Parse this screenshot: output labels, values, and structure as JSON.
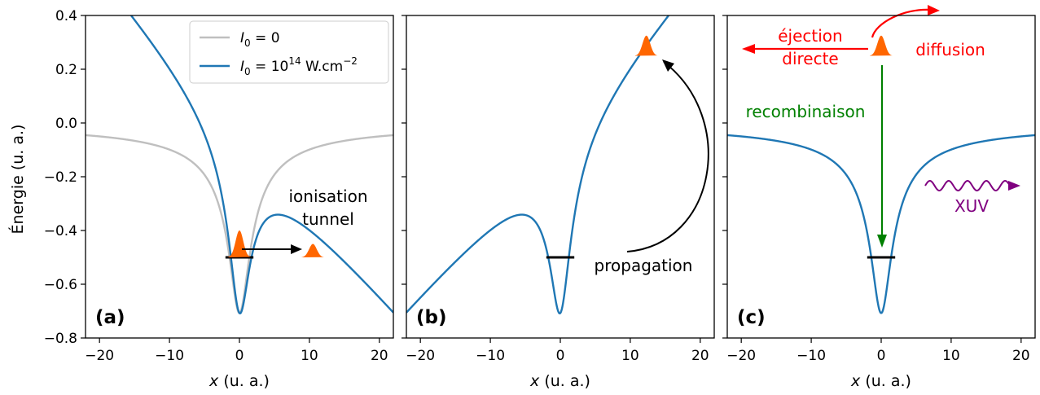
{
  "figure": {
    "ylabel": "Énergie (u. a.)",
    "xlabel_var": "x",
    "xlabel_unit": " (u. a.)"
  },
  "colors": {
    "field_off": "#bfbfbf",
    "field_on": "#1f77b4",
    "wavepacket": "#ff6600",
    "arrow": "#000000",
    "ejection": "#ff0000",
    "recombination": "#008000",
    "xuv": "#800080"
  },
  "legend": {
    "entries": [
      {
        "color_key": "field_off",
        "label_var": "I",
        "label_sub": "0",
        "label_rest": " = 0"
      },
      {
        "color_key": "field_on",
        "label_var": "I",
        "label_sub": "0",
        "label_mid": " = 10",
        "label_sup": "14",
        "label_end": " W.cm",
        "label_sup2": "−2"
      }
    ]
  },
  "panels": [
    {
      "id": "a",
      "label": "(a)",
      "annotations": {
        "ionisation": "ionisation",
        "tunnel": "tunnel"
      }
    },
    {
      "id": "b",
      "label": "(b)",
      "annotations": {
        "propagation": "propagation"
      }
    },
    {
      "id": "c",
      "label": "(c)",
      "annotations": {
        "ejection": "éjection",
        "directe": "directe",
        "diffusion": "diffusion",
        "recombinaison": "recombinaison",
        "xuv": "XUV"
      }
    }
  ],
  "chart_data": {
    "type": "line",
    "xlim": [
      -22,
      22
    ],
    "ylim": [
      -0.8,
      0.4
    ],
    "xticks": [
      -20,
      -10,
      0,
      10,
      20
    ],
    "xtick_labels": [
      "−20",
      "−10",
      "0",
      "10",
      "20"
    ],
    "yticks": [
      0.4,
      0.2,
      0.0,
      -0.2,
      -0.4,
      -0.6,
      -0.8
    ],
    "ytick_labels": [
      "0.4",
      "0.2",
      "0.0",
      "−0.2",
      "−0.4",
      "−0.6",
      "−0.8"
    ],
    "ground_state_energy": -0.5,
    "ground_state_x": [
      -2,
      2
    ],
    "potential": "V(x) = -1/sqrt(x^2 + a^2) + F*x",
    "softening_a": 1.414,
    "panels": [
      {
        "id": "a",
        "series": [
          {
            "color_key": "field_off",
            "field": 0
          },
          {
            "color_key": "field_on",
            "field": -0.03
          }
        ]
      },
      {
        "id": "b",
        "series": [
          {
            "color_key": "field_on",
            "field": 0.03
          }
        ]
      },
      {
        "id": "c",
        "series": [
          {
            "color_key": "field_on",
            "field": 0
          }
        ]
      }
    ],
    "wavepackets": [
      {
        "panel": "a",
        "x": 0,
        "y_base": -0.5,
        "height": 0.1
      },
      {
        "panel": "a",
        "x": 10.5,
        "y_base": -0.5,
        "height": 0.05
      },
      {
        "panel": "b",
        "x": 12.3,
        "y_base": 0.25,
        "height": 0.075
      },
      {
        "panel": "c",
        "x": 0,
        "y_base": 0.25,
        "height": 0.075
      }
    ]
  }
}
